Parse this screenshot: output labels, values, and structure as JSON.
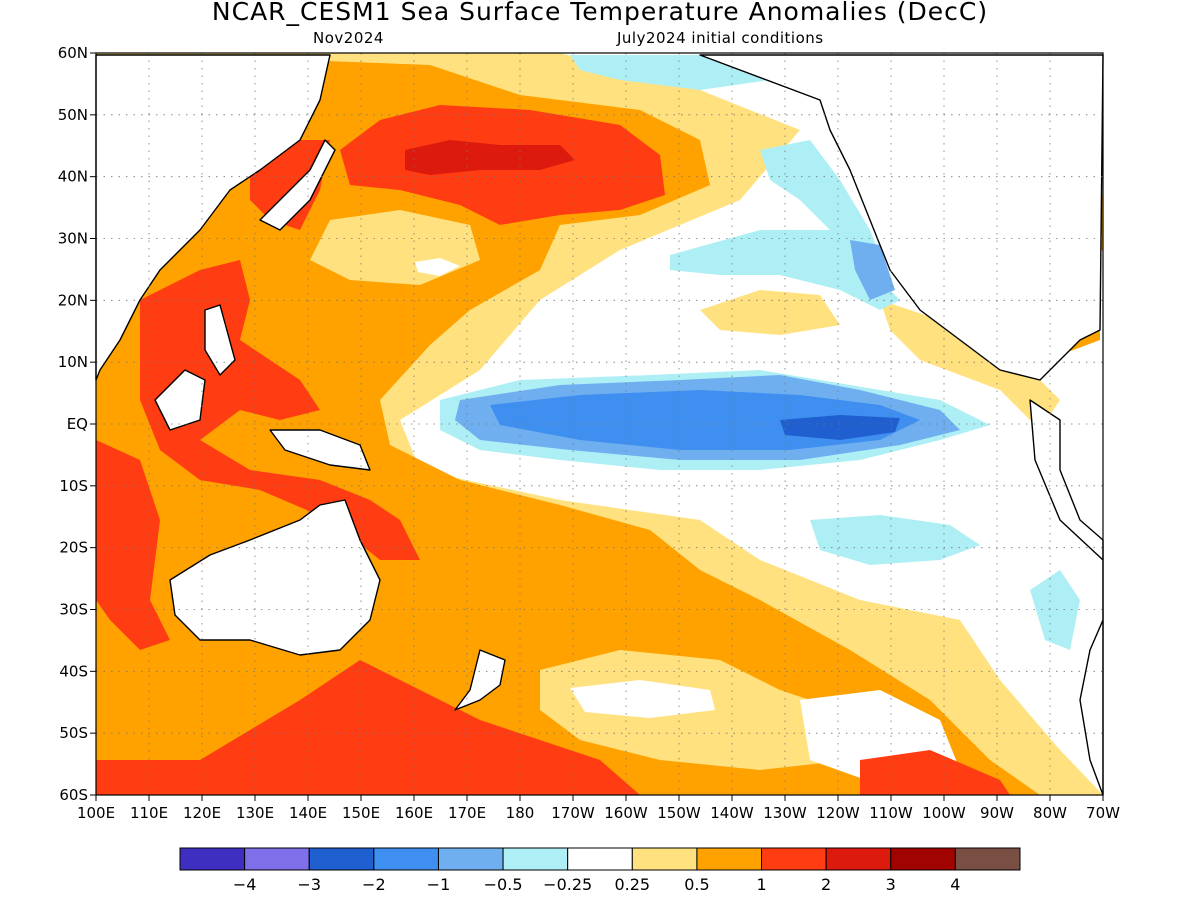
{
  "title": "NCAR_CESM1 Sea Surface Temperature Anomalies (DecC)",
  "subtitle_left": "Nov2024",
  "subtitle_right": "July2024 initial conditions",
  "map": {
    "type": "filled-contour-map",
    "lon_range": [
      "100E",
      "70W"
    ],
    "lat_range": [
      "60S",
      "60N"
    ],
    "grid": "dotted",
    "lat_ticks": [
      "60N",
      "50N",
      "40N",
      "30N",
      "20N",
      "10N",
      "EQ",
      "10S",
      "20S",
      "30S",
      "40S",
      "50S",
      "60S"
    ],
    "lon_ticks": [
      "100E",
      "110E",
      "120E",
      "130E",
      "140E",
      "150E",
      "160E",
      "170E",
      "180",
      "170W",
      "160W",
      "150W",
      "140W",
      "130W",
      "120W",
      "110W",
      "100W",
      "90W",
      "80W",
      "70W"
    ],
    "features": [
      {
        "name": "equatorial-cold-tongue",
        "anomaly_min": -2,
        "anomaly_max": -0.25
      },
      {
        "name": "north-pacific-warm-blob",
        "anomaly_min": 1,
        "anomaly_max": 3
      },
      {
        "name": "maritime-continent-warm",
        "anomaly_min": 1,
        "anomaly_max": 2
      },
      {
        "name": "south-pacific-warm-band",
        "anomaly_min": 0.5,
        "anomaly_max": 2
      }
    ]
  },
  "colorbar": {
    "colors": [
      "#3f2fc0",
      "#7f6fe8",
      "#1f5fcf",
      "#3f8ff0",
      "#6fafef",
      "#aeeff5",
      "#ffffff",
      "#ffe27f",
      "#ffa200",
      "#ff3c12",
      "#dd1a0e",
      "#a10300",
      "#7a4f43"
    ],
    "labels": [
      "-4",
      "-3",
      "-2",
      "-1",
      "-0.5",
      "-0.25",
      "0.25",
      "0.5",
      "1",
      "2",
      "3",
      "4"
    ]
  }
}
